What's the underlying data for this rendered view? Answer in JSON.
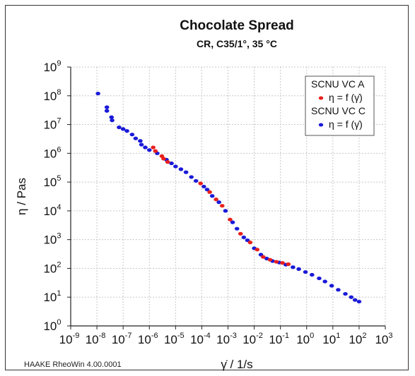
{
  "chart_data": {
    "type": "scatter",
    "title": "Chocolate Spread",
    "subtitle": "CR, C35/1°, 35 °C",
    "xlabel": "γ̇ / 1/s",
    "ylabel": "η / Pas",
    "xscale": "log",
    "yscale": "log",
    "xlim": [
      1e-09,
      1000
    ],
    "ylim": [
      1,
      1000000000
    ],
    "x_ticks": [
      {
        "base": "10",
        "exp": "-9"
      },
      {
        "base": "10",
        "exp": "-8"
      },
      {
        "base": "10",
        "exp": "-7"
      },
      {
        "base": "10",
        "exp": "-6"
      },
      {
        "base": "10",
        "exp": "-5"
      },
      {
        "base": "10",
        "exp": "-4"
      },
      {
        "base": "10",
        "exp": "-3"
      },
      {
        "base": "10",
        "exp": "-2"
      },
      {
        "base": "10",
        "exp": "-1"
      },
      {
        "base": "10",
        "exp": "0"
      },
      {
        "base": "10",
        "exp": "1"
      },
      {
        "base": "10",
        "exp": "2"
      },
      {
        "base": "10",
        "exp": "3"
      }
    ],
    "y_ticks": [
      {
        "base": "10",
        "exp": "0"
      },
      {
        "base": "10",
        "exp": "1"
      },
      {
        "base": "10",
        "exp": "2"
      },
      {
        "base": "10",
        "exp": "3"
      },
      {
        "base": "10",
        "exp": "4"
      },
      {
        "base": "10",
        "exp": "5"
      },
      {
        "base": "10",
        "exp": "6"
      },
      {
        "base": "10",
        "exp": "7"
      },
      {
        "base": "10",
        "exp": "8"
      },
      {
        "base": "10",
        "exp": "9"
      }
    ],
    "grid": true,
    "legend_position": "top-right",
    "series": [
      {
        "name": "SCNU VC A",
        "legend_label": "η = f (γ̇)",
        "color": "#e8201c",
        "points": [
          [
            1.4e-06,
            1600000.0
          ],
          [
            1.7e-06,
            1200000.0
          ],
          [
            3e-06,
            800000.0
          ],
          [
            3.5e-06,
            650000.0
          ],
          [
            5e-06,
            500000.0
          ],
          [
            9e-05,
            90000.0
          ],
          [
            0.0002,
            45000.0
          ],
          [
            0.00035,
            25000.0
          ],
          [
            0.0006,
            15000.0
          ],
          [
            0.0012,
            5000.0
          ],
          [
            0.003,
            1600.0
          ],
          [
            0.007,
            800.0
          ],
          [
            0.013,
            450.0
          ],
          [
            0.022,
            250.0
          ],
          [
            0.04,
            200.0
          ],
          [
            0.07,
            170.0
          ],
          [
            0.12,
            155.0
          ],
          [
            0.2,
            140.0
          ]
        ]
      },
      {
        "name": "SCNU VC C",
        "legend_label": "η = f (γ̇)",
        "color": "#1a1ad8",
        "points": [
          [
            1.1e-08,
            120000000.0
          ],
          [
            2.4e-08,
            40000000.0
          ],
          [
            2.4e-08,
            30000000.0
          ],
          [
            3.6e-08,
            18000000.0
          ],
          [
            3.8e-08,
            14000000.0
          ],
          [
            7e-08,
            8000000.0
          ],
          [
            1e-07,
            7000000.0
          ],
          [
            1.4e-07,
            6000000.0
          ],
          [
            2.2e-07,
            4500000.0
          ],
          [
            3e-07,
            3300000.0
          ],
          [
            4.5e-07,
            2700000.0
          ],
          [
            5e-07,
            2000000.0
          ],
          [
            7e-07,
            1600000.0
          ],
          [
            1e-06,
            1300000.0
          ],
          [
            2e-06,
            1000000.0
          ],
          [
            4.5e-06,
            600000.0
          ],
          [
            7e-06,
            450000.0
          ],
          [
            1e-05,
            350000.0
          ],
          [
            1.6e-05,
            280000.0
          ],
          [
            2.5e-05,
            220000.0
          ],
          [
            4e-05,
            150000.0
          ],
          [
            6e-05,
            110000.0
          ],
          [
            0.00012,
            70000.0
          ],
          [
            0.00016,
            55000.0
          ],
          [
            0.00025,
            33000.0
          ],
          [
            0.00045,
            20000.0
          ],
          [
            0.0008,
            10000.0
          ],
          [
            0.0015,
            4000.0
          ],
          [
            0.0022,
            2400.0
          ],
          [
            0.004,
            1200.0
          ],
          [
            0.0055,
            950.0
          ],
          [
            0.01,
            500.0
          ],
          [
            0.018,
            300.0
          ],
          [
            0.03,
            220.0
          ],
          [
            0.05,
            180.0
          ],
          [
            0.09,
            160.0
          ],
          [
            0.16,
            135.0
          ],
          [
            0.3,
            110.0
          ],
          [
            0.5,
            95.0
          ],
          [
            0.9,
            75.0
          ],
          [
            1.6,
            60.0
          ],
          [
            3.0,
            45.0
          ],
          [
            5.0,
            35.0
          ],
          [
            9.0,
            25.0
          ],
          [
            16.0,
            18.0
          ],
          [
            30.0,
            13.0
          ],
          [
            50.0,
            10.0
          ],
          [
            70.0,
            8.0
          ],
          [
            100.0,
            7.0
          ]
        ]
      }
    ]
  },
  "footer": "HAAKE RheoWin 4.00.0001"
}
